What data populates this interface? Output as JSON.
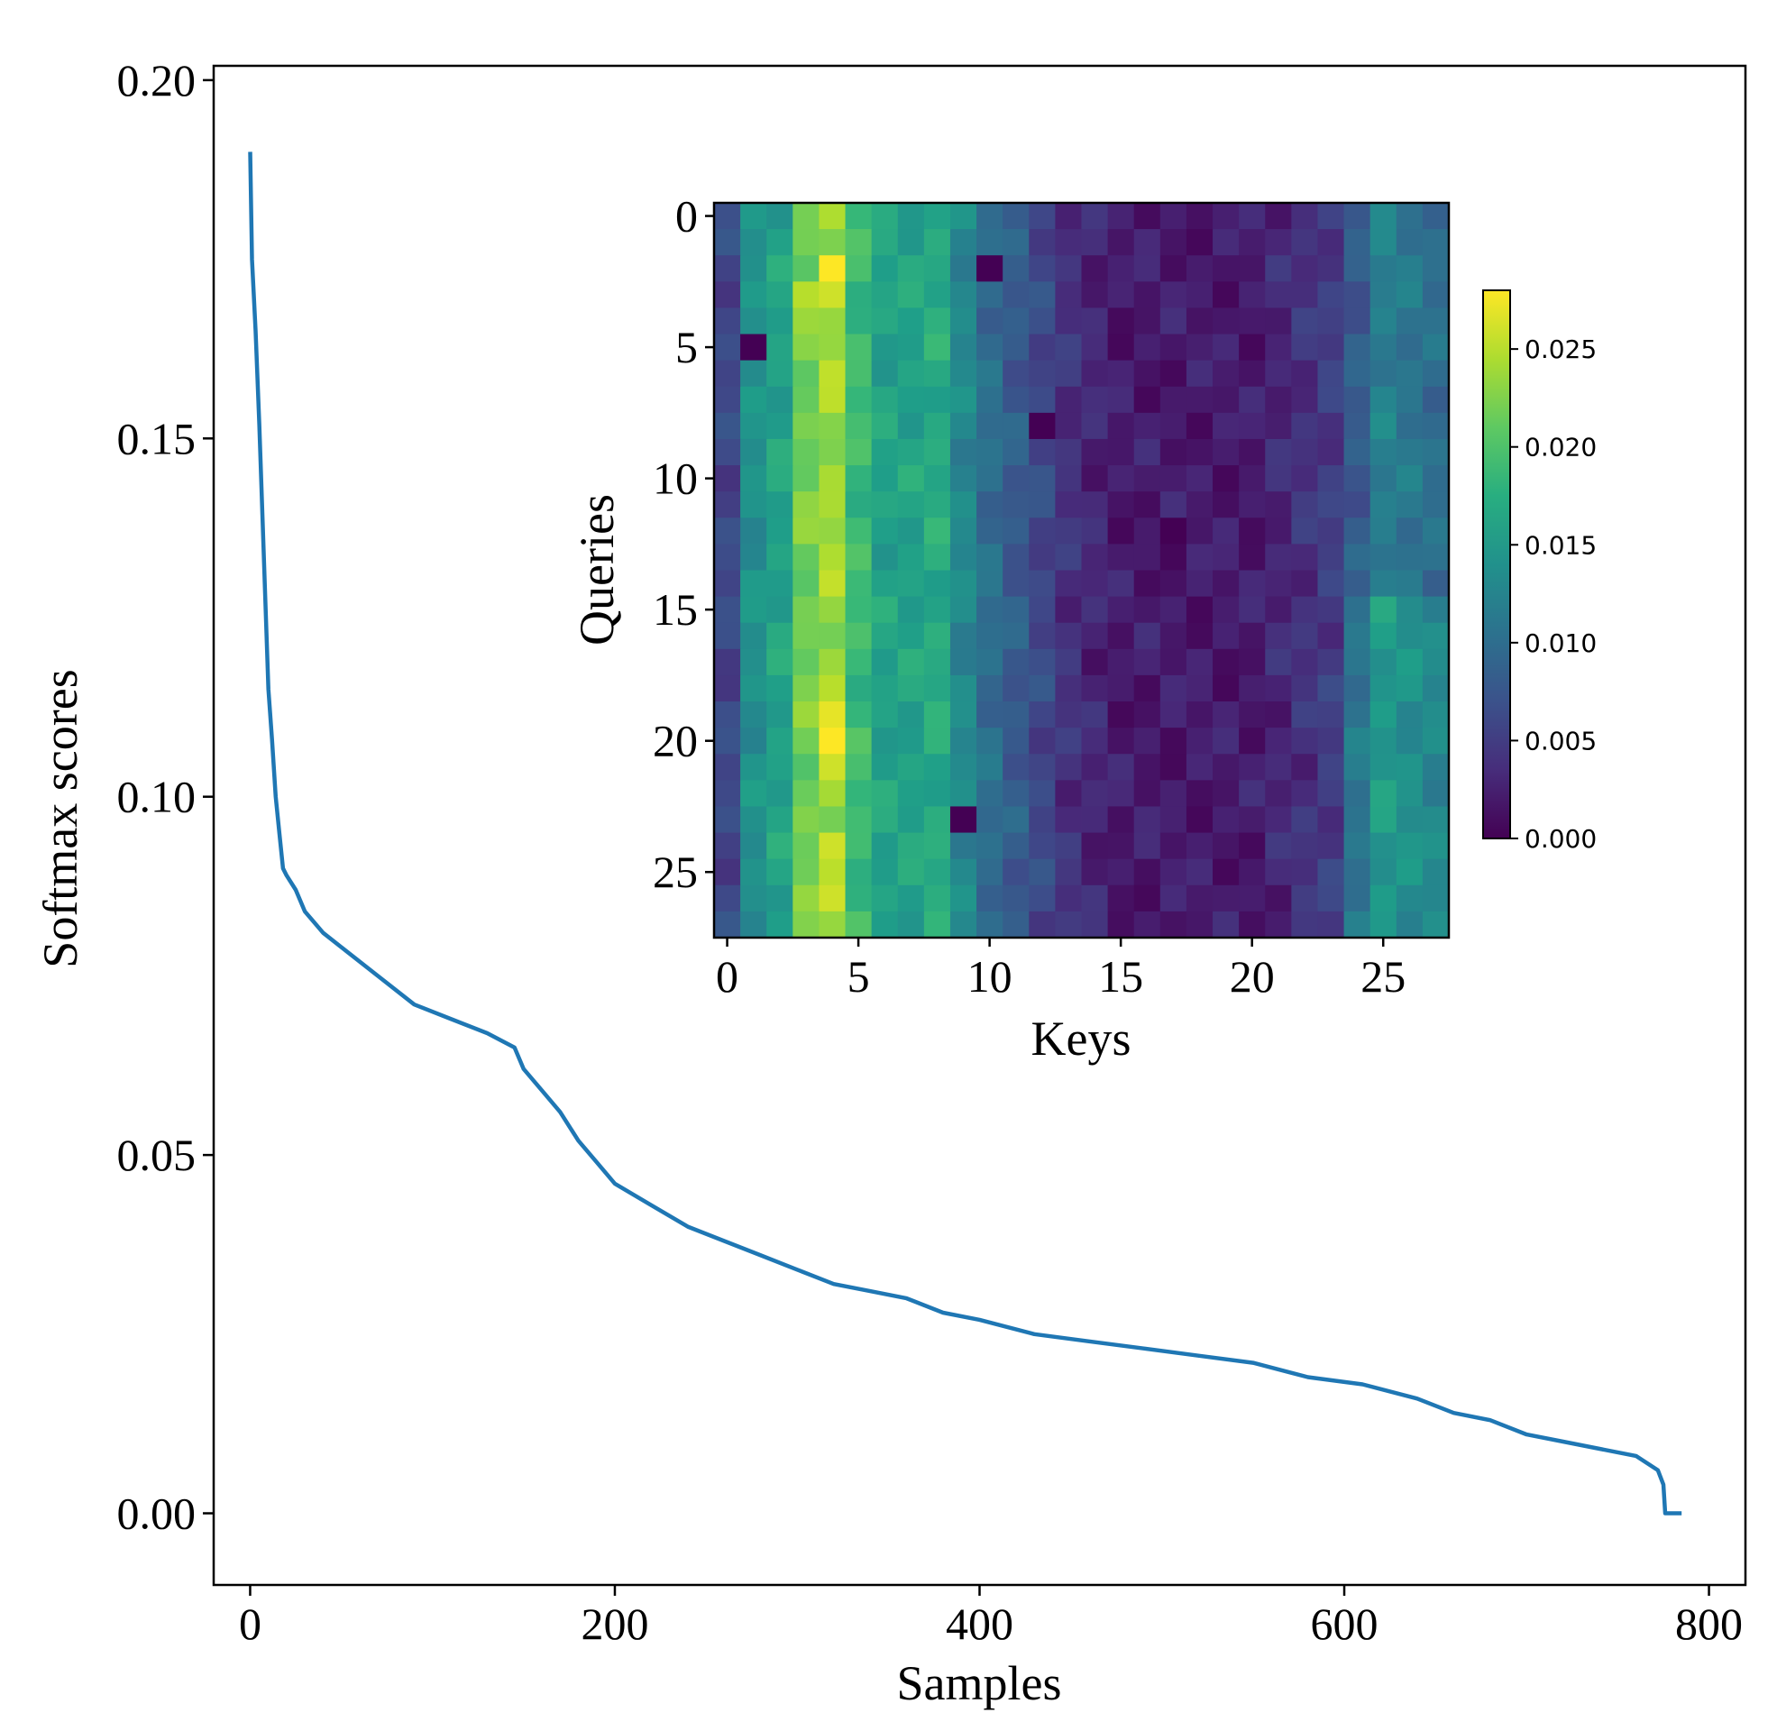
{
  "chart_data": [
    {
      "type": "line",
      "title": "",
      "xlabel": "Samples",
      "ylabel": "Softmax scores",
      "xlim": [
        -20,
        820
      ],
      "ylim": [
        -0.01,
        0.202
      ],
      "xticks": [
        "0",
        "200",
        "400",
        "600",
        "800"
      ],
      "yticks": [
        "0.00",
        "0.05",
        "0.10",
        "0.15",
        "0.20"
      ],
      "xtick_values": [
        0,
        200,
        400,
        600,
        800
      ],
      "ytick_values": [
        0.0,
        0.05,
        0.1,
        0.15,
        0.2
      ],
      "grid": false,
      "color": "#1f77b4",
      "series": [
        {
          "name": "softmax",
          "x": [
            0,
            1,
            3,
            5,
            8,
            10,
            12,
            14,
            16,
            18,
            20,
            25,
            30,
            40,
            50,
            70,
            90,
            110,
            130,
            145,
            150,
            160,
            170,
            180,
            190,
            200,
            220,
            240,
            260,
            280,
            300,
            320,
            340,
            360,
            380,
            400,
            430,
            460,
            490,
            520,
            550,
            580,
            610,
            640,
            660,
            680,
            700,
            720,
            740,
            760,
            772,
            775,
            776,
            785
          ],
          "y": [
            0.19,
            0.175,
            0.165,
            0.152,
            0.13,
            0.115,
            0.108,
            0.1,
            0.095,
            0.09,
            0.089,
            0.087,
            0.084,
            0.081,
            0.079,
            0.075,
            0.071,
            0.069,
            0.067,
            0.065,
            0.062,
            0.059,
            0.056,
            0.052,
            0.049,
            0.046,
            0.043,
            0.04,
            0.038,
            0.036,
            0.034,
            0.032,
            0.031,
            0.03,
            0.028,
            0.027,
            0.025,
            0.024,
            0.023,
            0.022,
            0.021,
            0.019,
            0.018,
            0.016,
            0.014,
            0.013,
            0.011,
            0.01,
            0.009,
            0.008,
            0.006,
            0.004,
            0.0,
            0.0
          ]
        }
      ]
    },
    {
      "type": "heatmap",
      "title": "",
      "xlabel": "Keys",
      "ylabel": "Queries",
      "xticks": [
        "0",
        "5",
        "10",
        "15",
        "20",
        "25"
      ],
      "yticks": [
        "0",
        "5",
        "10",
        "15",
        "20",
        "25"
      ],
      "tick_values": [
        0,
        5,
        10,
        15,
        20,
        25
      ],
      "colormap": "viridis",
      "colorbar_ticks": [
        "0.000",
        "0.005",
        "0.010",
        "0.015",
        "0.020",
        "0.025"
      ],
      "colorbar_tick_values": [
        0.0,
        0.005,
        0.01,
        0.015,
        0.02,
        0.025
      ],
      "vmin": 0.0,
      "vmax": 0.028,
      "rows": 28,
      "cols": 28,
      "column_profile": [
        0.006,
        0.014,
        0.016,
        0.022,
        0.024,
        0.019,
        0.016,
        0.016,
        0.017,
        0.013,
        0.01,
        0.008,
        0.006,
        0.004,
        0.003,
        0.002,
        0.002,
        0.002,
        0.002,
        0.002,
        0.002,
        0.003,
        0.004,
        0.005,
        0.008,
        0.012,
        0.011,
        0.01
      ],
      "bright_cells": [
        {
          "row": 2,
          "col": 4,
          "value": 0.028
        },
        {
          "row": 3,
          "col": 3,
          "value": 0.025
        },
        {
          "row": 3,
          "col": 4,
          "value": 0.026
        },
        {
          "row": 19,
          "col": 4,
          "value": 0.027
        },
        {
          "row": 20,
          "col": 4,
          "value": 0.028
        },
        {
          "row": 21,
          "col": 4,
          "value": 0.026
        },
        {
          "row": 24,
          "col": 4,
          "value": 0.026
        },
        {
          "row": 26,
          "col": 4,
          "value": 0.026
        }
      ],
      "zero_cells": [
        {
          "row": 2,
          "col": 10,
          "value": 0.0
        },
        {
          "row": 5,
          "col": 1,
          "value": 0.0
        },
        {
          "row": 8,
          "col": 12,
          "value": 0.0
        },
        {
          "row": 12,
          "col": 17,
          "value": 0.0
        },
        {
          "row": 23,
          "col": 9,
          "value": 0.0
        }
      ]
    }
  ]
}
